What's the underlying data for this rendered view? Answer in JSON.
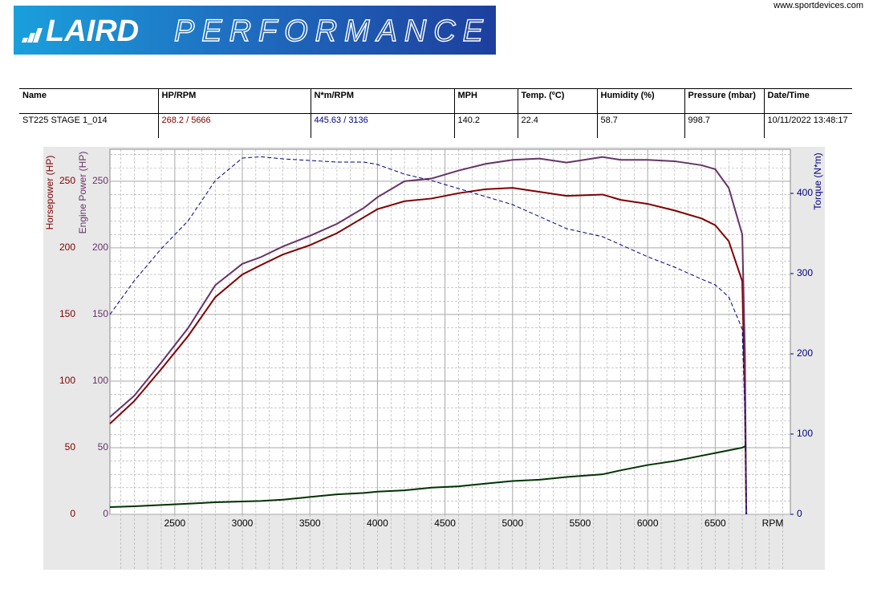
{
  "header": {
    "logo_left": "LAIRD",
    "logo_right": "PERFORMANCE",
    "website": "www.sportdevices.com"
  },
  "table": {
    "columns": [
      "Name",
      "HP/RPM",
      "N*m/RPM",
      "MPH",
      "Temp. (ºC)",
      "Humidity (%)",
      "Pressure (mbar)",
      "Date/Time"
    ],
    "rows": [
      [
        "ST225 STAGE 1_014",
        "268.2 / 5666",
        "445.63 / 3136",
        "140.2",
        "22.4",
        "58.7",
        "998.7",
        "10/11/2022 13:48:17"
      ]
    ]
  },
  "chart_data": {
    "type": "line",
    "x": [
      2020,
      2200,
      2400,
      2600,
      2800,
      3000,
      3136,
      3300,
      3500,
      3700,
      3900,
      4000,
      4200,
      4400,
      4600,
      4800,
      5000,
      5200,
      5400,
      5666,
      5800,
      6000,
      6200,
      6400,
      6500,
      6600,
      6700,
      6720,
      6730
    ],
    "series": [
      {
        "name": "Horsepower (HP)",
        "color": "#800000",
        "values": [
          68,
          85,
          109,
          134,
          163,
          180,
          187,
          195,
          202,
          211,
          223,
          229,
          235,
          237,
          241,
          244,
          245,
          242,
          239,
          240,
          236,
          233,
          228,
          222,
          217,
          205,
          175,
          85,
          0
        ]
      },
      {
        "name": "Engine Power (HP)",
        "color": "#663366",
        "values": [
          73,
          89,
          114,
          140,
          172,
          188,
          193,
          201,
          209,
          218,
          230,
          238,
          250,
          252,
          258,
          263,
          266,
          267,
          264,
          268.2,
          266,
          266,
          265,
          262,
          259,
          245,
          210,
          120,
          0
        ]
      },
      {
        "name": "Torque (N*m)",
        "color": "#000080",
        "axis": "y2",
        "dashed": true,
        "values": [
          249,
          291,
          331,
          366,
          416,
          444,
          445.63,
          443,
          441,
          439,
          439,
          436,
          424,
          416,
          406,
          396,
          386,
          371,
          356,
          346,
          336,
          321,
          308,
          293,
          286,
          271,
          231,
          121,
          0
        ]
      },
      {
        "color": "#003300",
        "values": [
          5.4,
          6,
          7,
          8,
          9,
          9.6,
          10,
          11,
          13,
          15,
          16,
          17,
          18,
          20,
          21,
          23,
          25,
          26,
          28,
          30,
          33,
          37,
          40,
          44,
          46,
          48,
          50,
          51,
          51
        ]
      }
    ],
    "xlabel": "RPM",
    "xlim": [
      2020,
      7056
    ],
    "xticks": [
      2500,
      3000,
      3500,
      4000,
      4500,
      5000,
      5500,
      6000,
      6500
    ],
    "y_axes": [
      {
        "label": "Horsepower (HP)",
        "color": "#800000"
      },
      {
        "label": "Engine Power (HP)",
        "color": "#663366"
      }
    ],
    "ylim": [
      0,
      274
    ],
    "yticks": [
      0,
      50,
      100,
      150,
      200,
      250
    ],
    "y2label": "Torque (N*m)",
    "y2color": "#000080",
    "y2lim": [
      0,
      455
    ],
    "y2ticks": [
      0,
      100,
      200,
      300,
      400
    ],
    "grid": true
  }
}
